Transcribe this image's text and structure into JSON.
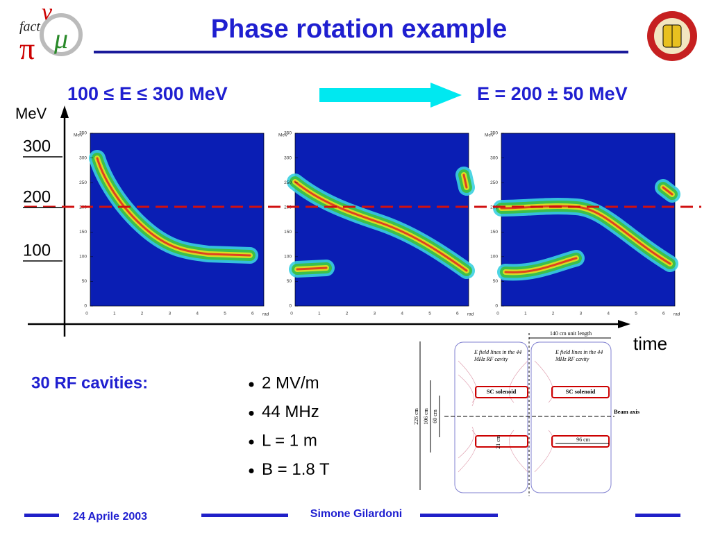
{
  "header": {
    "title": "Phase rotation example"
  },
  "logo": {
    "text": "fact",
    "symbols": [
      "ν",
      "π",
      "μ"
    ]
  },
  "energy": {
    "before": "100 ≤ E ≤ 300 MeV",
    "after": "E = 200 ± 50 MeV"
  },
  "axis": {
    "y_label": "MeV",
    "y_ticks": [
      "300",
      "200",
      "100"
    ],
    "x_label": "time"
  },
  "plots": {
    "y_ticks": [
      "0",
      "50",
      "100",
      "150",
      "200",
      "250",
      "300",
      "350"
    ],
    "x_ticks": [
      "0",
      "1",
      "2",
      "3",
      "4",
      "5",
      "6"
    ],
    "y_unit": "MeV",
    "x_unit": "rad"
  },
  "cavities": {
    "label": "30 RF cavities:",
    "items": [
      "2 MV/m",
      "44 MHz",
      "L = 1 m",
      "B = 1.8 T"
    ]
  },
  "diagram": {
    "unit_length": "140 cm unit length",
    "field_note": "E field lines in the 44 MHz RF cavity",
    "solenoid": "SC solenoid",
    "beam_axis": "Beam axis",
    "dims": [
      "226 cm",
      "106 cm",
      "60 cm"
    ],
    "gap": "21 cm",
    "width": "96 cm"
  },
  "footer": {
    "date": "24 Aprile 2003",
    "author": "Simone Gilardoni"
  }
}
